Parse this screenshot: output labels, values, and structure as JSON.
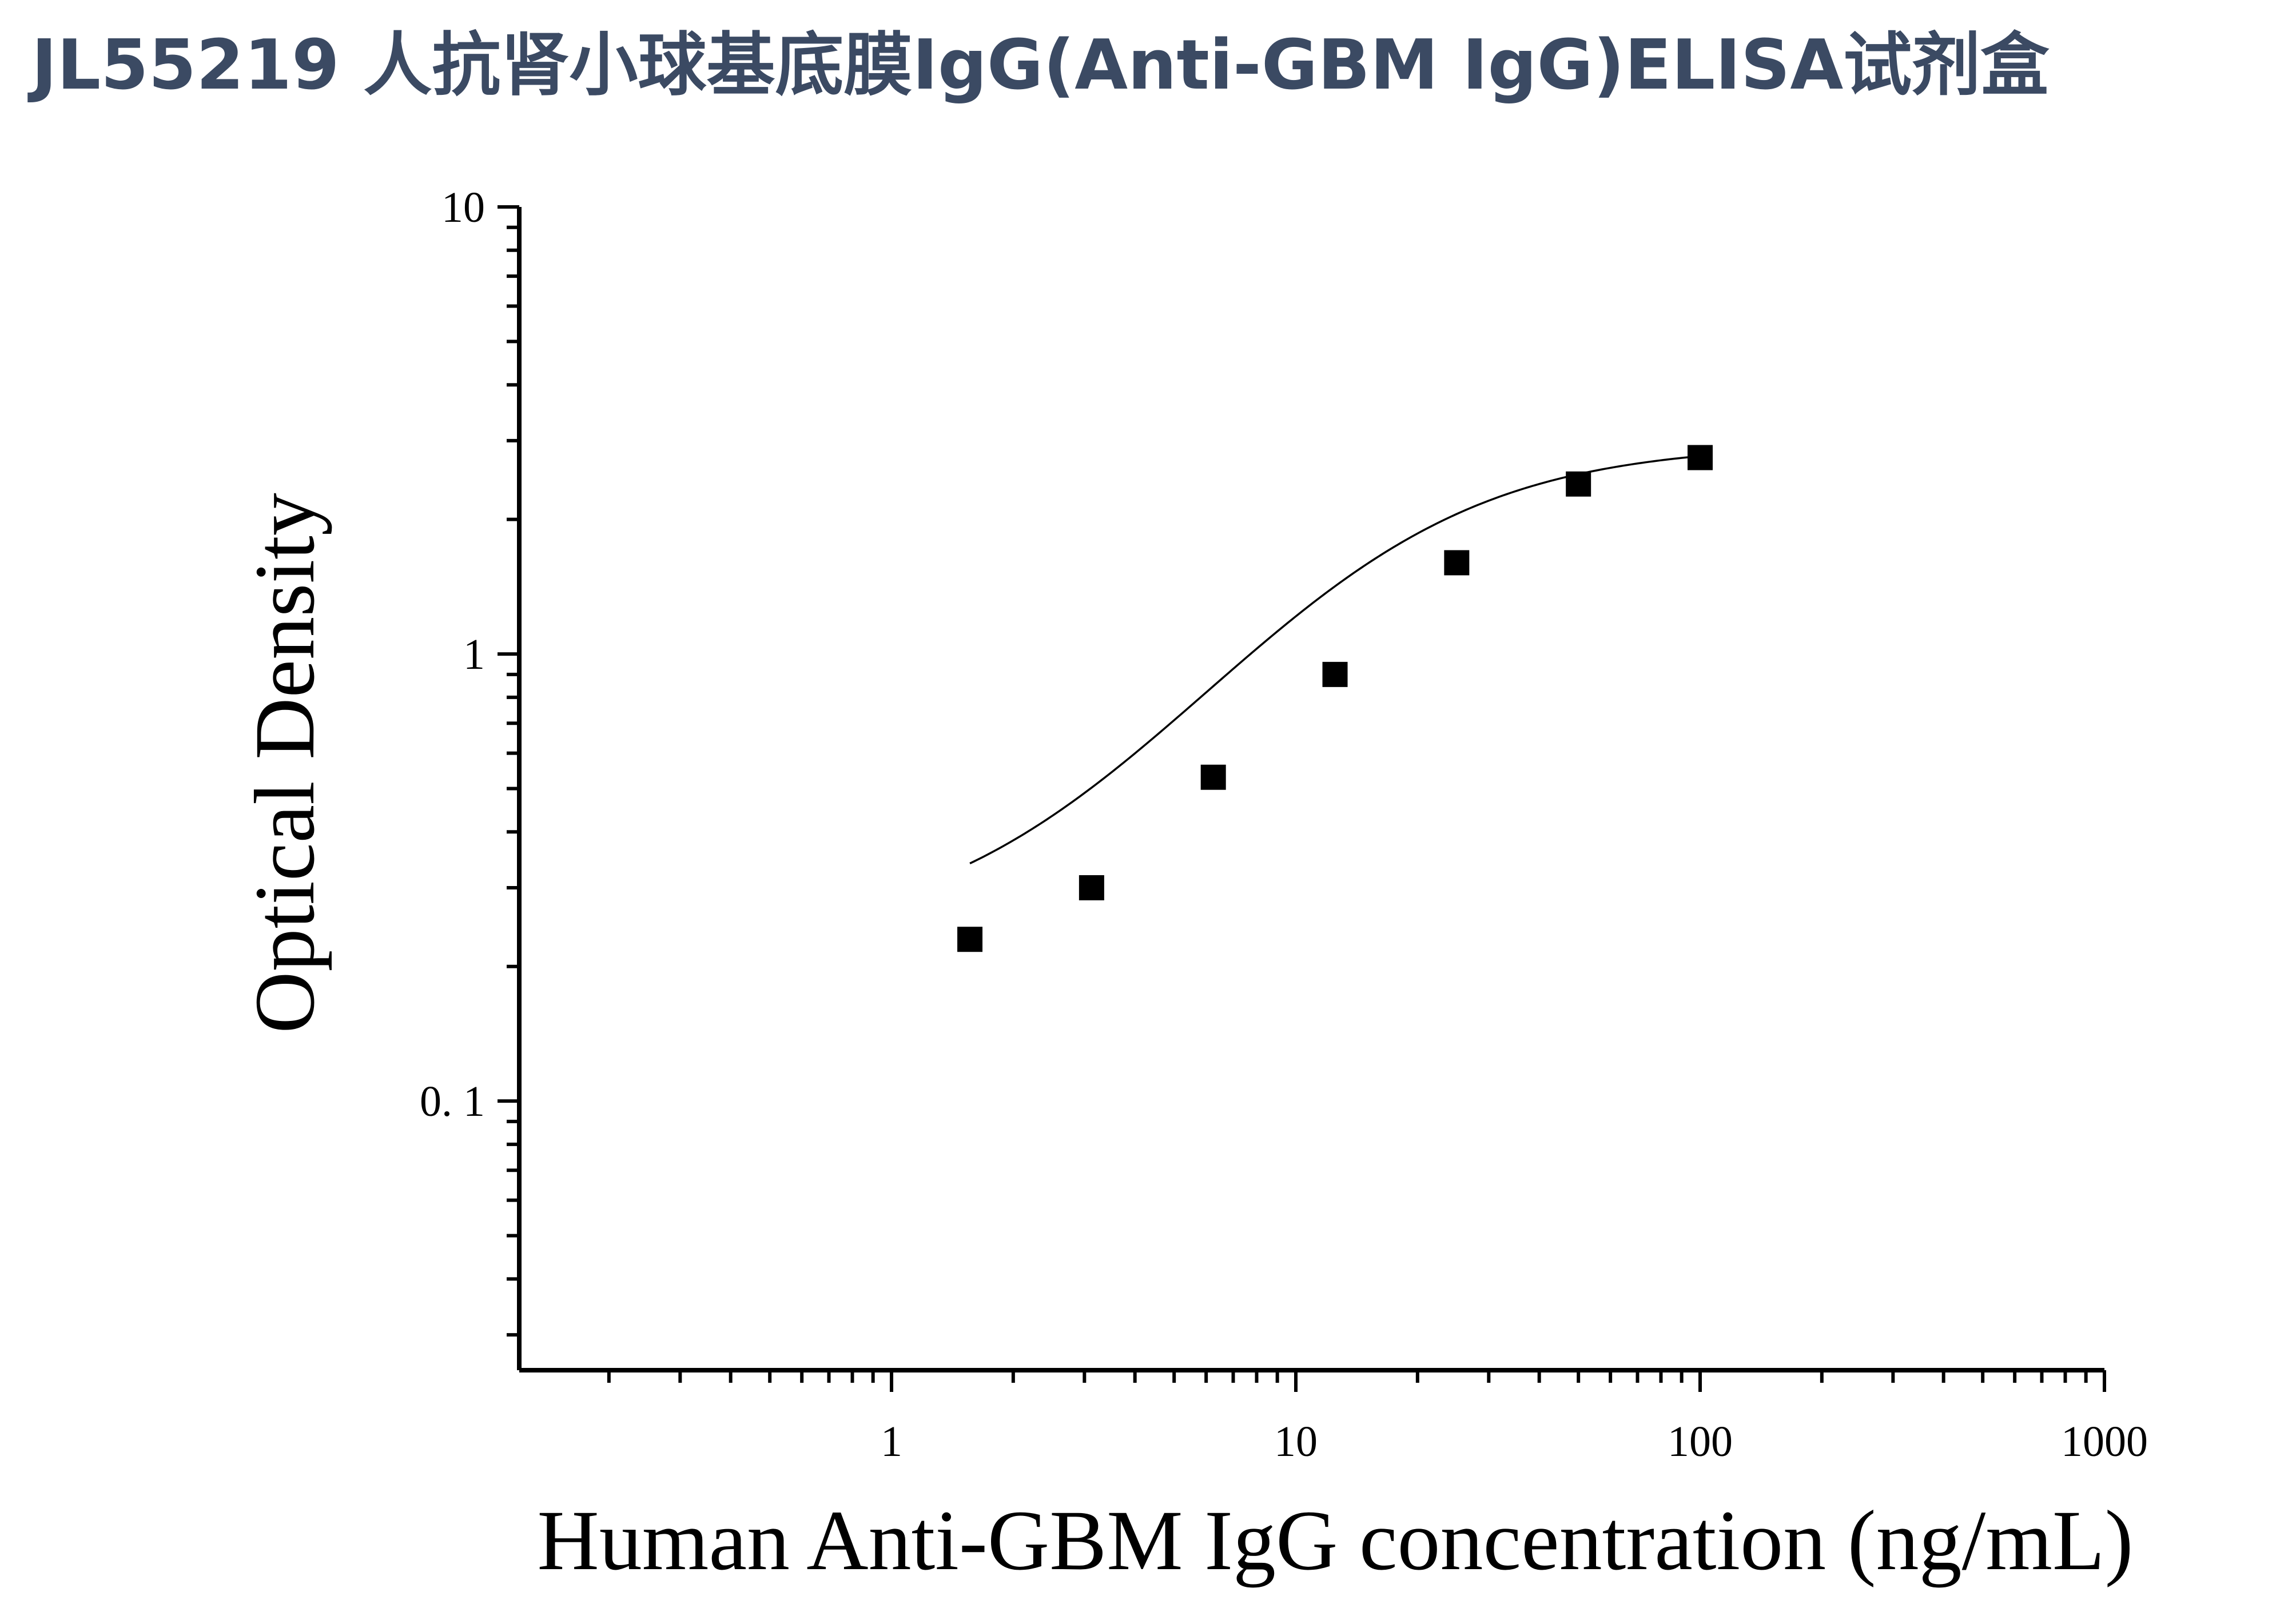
{
  "header": {
    "title": "JL55219 人抗肾小球基底膜IgG(Anti-GBM IgG)ELISA试剂盒"
  },
  "chart_data": {
    "type": "scatter",
    "title": "",
    "xlabel": "Human Anti-GBM IgG concentration (ng/mL)",
    "ylabel": "Optical Density",
    "x_scale": "log",
    "y_scale": "log",
    "xlim": [
      0.12,
      1000
    ],
    "ylim": [
      0.025,
      10
    ],
    "x_ticks": [
      1,
      10,
      100,
      1000
    ],
    "x_tick_labels": [
      "1",
      "10",
      "100",
      "1000"
    ],
    "y_ticks": [
      0.1,
      1,
      10
    ],
    "y_tick_labels": [
      "0. 1",
      "1",
      "10"
    ],
    "grid": false,
    "legend": "none",
    "marker": "square",
    "marker_color": "#000000",
    "series": [
      {
        "x": [
          1.5625,
          3.125,
          6.25,
          12.5,
          25,
          50,
          100
        ],
        "y": [
          0.23,
          0.3,
          0.53,
          0.9,
          1.6,
          2.4,
          2.75
        ]
      }
    ],
    "fit": {
      "type": "4PL",
      "bottom": 0.23,
      "top": 2.95,
      "ec50": 15,
      "hill": 1.4,
      "x_range": [
        1.5625,
        100
      ]
    }
  }
}
